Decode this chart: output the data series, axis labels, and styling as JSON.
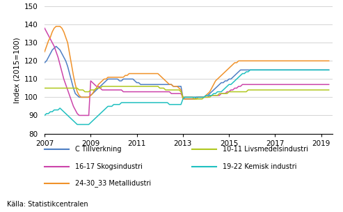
{
  "ylabel": "Index (2015=100)",
  "source": "Källa: Statistikcentralen",
  "ylim": [
    80,
    150
  ],
  "yticks": [
    80,
    90,
    100,
    110,
    120,
    130,
    140,
    150
  ],
  "xlim": [
    2007.0,
    2019.5
  ],
  "xticks": [
    2007,
    2009,
    2011,
    2013,
    2015,
    2017,
    2019
  ],
  "colors": {
    "C Tillverkning": "#4e7fc4",
    "16-17 Skogsindustri": "#cc44aa",
    "24-30_33 Metallidustri": "#f0922a",
    "10-11 Livsmedelsindustri": "#b0c820",
    "19-22 Kemisk industri": "#20c0c0"
  },
  "legend_col1": [
    "C Tillverkning",
    "16-17 Skogsindustri",
    "24-30_33 Metallidustri"
  ],
  "legend_col2": [
    "10-11 Livsmedelsindustri",
    "19-22 Kemisk industri"
  ],
  "series": {
    "C Tillverkning": [
      119,
      120,
      122,
      124,
      126,
      127,
      128,
      127,
      126,
      124,
      122,
      120,
      117,
      113,
      109,
      105,
      102,
      101,
      100,
      100,
      100,
      100,
      100,
      100,
      101,
      102,
      103,
      104,
      105,
      106,
      107,
      108,
      109,
      110,
      110,
      110,
      110,
      110,
      110,
      109,
      109,
      110,
      110,
      110,
      110,
      110,
      110,
      109,
      108,
      108,
      107,
      107,
      107,
      107,
      107,
      107,
      107,
      107,
      107,
      107,
      107,
      107,
      107,
      107,
      107,
      107,
      107,
      106,
      106,
      106,
      106,
      106,
      100,
      99,
      99,
      99,
      99,
      99,
      99,
      100,
      100,
      100,
      100,
      100,
      101,
      101,
      102,
      103,
      104,
      105,
      106,
      107,
      108,
      108,
      109,
      109,
      110,
      110,
      111,
      112,
      113,
      114,
      115,
      115,
      115,
      115,
      115,
      115,
      115,
      115,
      115,
      115,
      115,
      115,
      115,
      115,
      115,
      115,
      115,
      115,
      115,
      115,
      115,
      115,
      115,
      115,
      115,
      115,
      115,
      115,
      115,
      115,
      115,
      115,
      115,
      115,
      115,
      115,
      115,
      115,
      115,
      115,
      115,
      115,
      115,
      115,
      115,
      115,
      115
    ],
    "16-17 Skogsindustri": [
      138,
      136,
      134,
      132,
      130,
      128,
      125,
      122,
      118,
      114,
      110,
      107,
      104,
      101,
      98,
      95,
      93,
      91,
      90,
      90,
      90,
      90,
      90,
      90,
      109,
      108,
      107,
      106,
      106,
      105,
      104,
      104,
      104,
      104,
      104,
      104,
      104,
      104,
      104,
      104,
      104,
      103,
      103,
      103,
      103,
      103,
      103,
      103,
      103,
      103,
      103,
      103,
      103,
      103,
      103,
      103,
      103,
      103,
      103,
      103,
      103,
      103,
      103,
      103,
      103,
      103,
      102,
      102,
      102,
      102,
      102,
      102,
      100,
      100,
      100,
      100,
      100,
      100,
      100,
      100,
      100,
      100,
      100,
      100,
      100,
      100,
      101,
      101,
      101,
      101,
      101,
      101,
      102,
      102,
      102,
      103,
      103,
      104,
      104,
      105,
      105,
      106,
      106,
      107,
      107,
      107,
      107,
      107,
      107,
      107,
      107,
      107,
      107,
      107,
      107,
      107,
      107,
      107,
      107,
      107,
      107,
      107,
      107,
      107,
      107,
      107,
      107,
      107,
      107,
      107,
      107,
      107,
      107,
      107,
      107,
      107,
      107,
      107,
      107,
      107,
      107,
      107,
      107,
      107,
      107,
      107,
      107,
      107,
      107
    ],
    "24-30_33 Metallidustri": [
      125,
      128,
      131,
      133,
      136,
      138,
      139,
      139,
      139,
      138,
      136,
      133,
      130,
      124,
      118,
      112,
      107,
      103,
      101,
      100,
      100,
      100,
      100,
      100,
      101,
      102,
      104,
      105,
      107,
      108,
      109,
      110,
      110,
      111,
      111,
      111,
      111,
      111,
      111,
      111,
      111,
      111,
      112,
      112,
      113,
      113,
      113,
      113,
      113,
      113,
      113,
      113,
      113,
      113,
      113,
      113,
      113,
      113,
      113,
      113,
      112,
      111,
      110,
      109,
      108,
      107,
      107,
      106,
      106,
      106,
      105,
      104,
      99,
      99,
      99,
      99,
      99,
      99,
      99,
      99,
      100,
      100,
      100,
      100,
      101,
      102,
      103,
      105,
      107,
      109,
      110,
      111,
      112,
      113,
      114,
      115,
      116,
      117,
      118,
      119,
      119,
      120,
      120,
      120,
      120,
      120,
      120,
      120,
      120,
      120,
      120,
      120,
      120,
      120,
      120,
      120,
      120,
      120,
      120,
      120,
      120,
      120,
      120,
      120,
      120,
      120,
      120,
      120,
      120,
      120,
      120,
      120,
      120,
      120,
      120,
      120,
      120,
      120,
      120,
      120,
      120,
      120,
      120,
      120,
      120,
      120,
      120,
      120,
      120
    ],
    "10-11 Livsmedelsindustri": [
      105,
      105,
      105,
      105,
      105,
      105,
      105,
      105,
      105,
      105,
      105,
      105,
      105,
      105,
      105,
      105,
      105,
      105,
      104,
      104,
      104,
      103,
      103,
      103,
      104,
      104,
      104,
      105,
      105,
      105,
      106,
      106,
      106,
      106,
      106,
      106,
      106,
      106,
      106,
      106,
      106,
      106,
      106,
      106,
      106,
      106,
      106,
      106,
      106,
      106,
      106,
      106,
      106,
      106,
      106,
      106,
      106,
      106,
      106,
      106,
      105,
      105,
      105,
      104,
      104,
      104,
      104,
      104,
      104,
      104,
      104,
      103,
      100,
      100,
      100,
      100,
      100,
      100,
      99,
      99,
      99,
      99,
      99,
      100,
      100,
      100,
      100,
      101,
      101,
      101,
      101,
      102,
      102,
      102,
      102,
      102,
      103,
      103,
      103,
      103,
      103,
      103,
      103,
      103,
      103,
      103,
      104,
      104,
      104,
      104,
      104,
      104,
      104,
      104,
      104,
      104,
      104,
      104,
      104,
      104,
      104,
      104,
      104,
      104,
      104,
      104,
      104,
      104,
      104,
      104,
      104,
      104,
      104,
      104,
      104,
      104,
      104,
      104,
      104,
      104,
      104,
      104,
      104,
      104,
      104,
      104,
      104,
      104,
      104
    ],
    "19-22 Kemisk industri": [
      90,
      91,
      91,
      92,
      92,
      93,
      93,
      93,
      94,
      93,
      92,
      91,
      90,
      89,
      88,
      87,
      86,
      85,
      85,
      85,
      85,
      85,
      85,
      85,
      86,
      87,
      88,
      89,
      90,
      91,
      92,
      93,
      94,
      95,
      95,
      95,
      96,
      96,
      96,
      96,
      97,
      97,
      97,
      97,
      97,
      97,
      97,
      97,
      97,
      97,
      97,
      97,
      97,
      97,
      97,
      97,
      97,
      97,
      97,
      97,
      97,
      97,
      97,
      97,
      97,
      96,
      96,
      96,
      96,
      96,
      96,
      96,
      99,
      100,
      100,
      100,
      100,
      100,
      100,
      100,
      100,
      100,
      100,
      100,
      101,
      101,
      101,
      101,
      102,
      102,
      103,
      103,
      103,
      104,
      105,
      106,
      107,
      107,
      108,
      109,
      110,
      111,
      112,
      113,
      113,
      114,
      114,
      115,
      115,
      115,
      115,
      115,
      115,
      115,
      115,
      115,
      115,
      115,
      115,
      115,
      115,
      115,
      115,
      115,
      115,
      115,
      115,
      115,
      115,
      115,
      115,
      115,
      115,
      115,
      115,
      115,
      115,
      115,
      115,
      115,
      115,
      115,
      115,
      115,
      115,
      115,
      115,
      115,
      115
    ]
  }
}
